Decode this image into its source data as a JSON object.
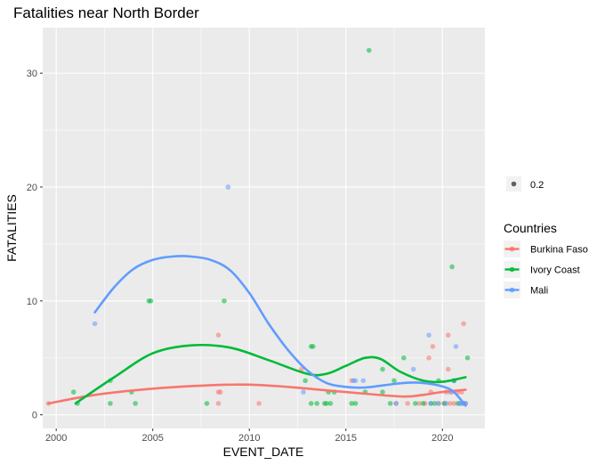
{
  "chart_data": {
    "type": "scatter",
    "title": "Fatalities near North Border",
    "xlabel": "EVENT_DATE",
    "ylabel": "FATALITIES",
    "xlim": [
      1999.3,
      2022.2
    ],
    "ylim": [
      -1.2,
      34.0
    ],
    "x_ticks": [
      2000,
      2005,
      2010,
      2015,
      2020
    ],
    "x_tick_labels": [
      "2000",
      "2005",
      "2010",
      "2015",
      "2020"
    ],
    "y_ticks": [
      0,
      10,
      20,
      30
    ],
    "y_tick_labels": [
      "0",
      "10",
      "20",
      "30"
    ],
    "grid": true,
    "size_legend": {
      "label": "0.2"
    },
    "legend_title": "Countries",
    "legend_position": "right",
    "series": [
      {
        "name": "Burkina Faso",
        "color": "#F8766D",
        "points": [
          [
            1999.6,
            1
          ],
          [
            2008.4,
            7
          ],
          [
            2008.4,
            2
          ],
          [
            2008.5,
            2
          ],
          [
            2008.4,
            1
          ],
          [
            2010.5,
            1
          ],
          [
            2012.7,
            4
          ],
          [
            2015.3,
            3
          ],
          [
            2017.6,
            1
          ],
          [
            2018.2,
            1
          ],
          [
            2018.8,
            1
          ],
          [
            2019.1,
            1
          ],
          [
            2019.3,
            5
          ],
          [
            2019.4,
            2
          ],
          [
            2019.5,
            6
          ],
          [
            2019.8,
            1
          ],
          [
            2020.1,
            1
          ],
          [
            2020.2,
            2
          ],
          [
            2020.3,
            4
          ],
          [
            2020.3,
            7
          ],
          [
            2020.4,
            1
          ],
          [
            2020.5,
            2
          ],
          [
            2020.6,
            1
          ],
          [
            2020.8,
            2
          ],
          [
            2020.9,
            1
          ],
          [
            2021.0,
            2
          ],
          [
            2021.1,
            8
          ],
          [
            2021.2,
            1
          ]
        ],
        "smooth": [
          [
            1999.6,
            1.0
          ],
          [
            2002,
            1.75
          ],
          [
            2005,
            2.3
          ],
          [
            2008,
            2.6
          ],
          [
            2010,
            2.65
          ],
          [
            2012,
            2.45
          ],
          [
            2014,
            2.15
          ],
          [
            2016,
            1.85
          ],
          [
            2018,
            1.6
          ],
          [
            2019,
            1.75
          ],
          [
            2020,
            2.0
          ],
          [
            2021.2,
            2.2
          ]
        ]
      },
      {
        "name": "Ivory Coast",
        "color": "#00BA38",
        "points": [
          [
            2000.9,
            2
          ],
          [
            2001.1,
            1
          ],
          [
            2002.8,
            3
          ],
          [
            2002.8,
            1
          ],
          [
            2003.9,
            2
          ],
          [
            2004.1,
            1
          ],
          [
            2004.8,
            10
          ],
          [
            2004.9,
            10
          ],
          [
            2007.8,
            1
          ],
          [
            2008.7,
            10
          ],
          [
            2012.9,
            3
          ],
          [
            2013.2,
            6
          ],
          [
            2013.3,
            6
          ],
          [
            2013.2,
            1
          ],
          [
            2013.5,
            1
          ],
          [
            2013.9,
            1
          ],
          [
            2014.0,
            1
          ],
          [
            2014.1,
            2
          ],
          [
            2014.2,
            1
          ],
          [
            2014.4,
            2
          ],
          [
            2015.3,
            1
          ],
          [
            2015.5,
            1
          ],
          [
            2016.0,
            2
          ],
          [
            2016.2,
            32
          ],
          [
            2016.9,
            4
          ],
          [
            2016.9,
            2
          ],
          [
            2017.3,
            1
          ],
          [
            2017.5,
            3
          ],
          [
            2018.0,
            5
          ],
          [
            2018.6,
            1
          ],
          [
            2019.0,
            1
          ],
          [
            2019.4,
            1
          ],
          [
            2019.6,
            1
          ],
          [
            2019.8,
            3
          ],
          [
            2020.1,
            1
          ],
          [
            2020.5,
            13
          ],
          [
            2020.6,
            3
          ],
          [
            2020.6,
            3
          ],
          [
            2020.8,
            1
          ],
          [
            2021.1,
            1
          ],
          [
            2021.3,
            5
          ]
        ],
        "smooth": [
          [
            2001.0,
            1.0
          ],
          [
            2003,
            3.3
          ],
          [
            2005,
            5.4
          ],
          [
            2007,
            6.1
          ],
          [
            2009,
            5.9
          ],
          [
            2011,
            4.8
          ],
          [
            2013,
            3.6
          ],
          [
            2014,
            3.6
          ],
          [
            2015,
            4.3
          ],
          [
            2016,
            5.0
          ],
          [
            2016.8,
            4.9
          ],
          [
            2017.8,
            3.8
          ],
          [
            2019,
            3.0
          ],
          [
            2020,
            2.9
          ],
          [
            2021.2,
            3.3
          ]
        ]
      },
      {
        "name": "Mali",
        "color": "#619CFF",
        "points": [
          [
            2002.0,
            8
          ],
          [
            2008.9,
            20
          ],
          [
            2012.8,
            2
          ],
          [
            2015.4,
            3
          ],
          [
            2015.5,
            3
          ],
          [
            2015.9,
            3
          ],
          [
            2017.6,
            1
          ],
          [
            2018.5,
            4
          ],
          [
            2019.3,
            7
          ],
          [
            2019.4,
            1
          ],
          [
            2019.8,
            1
          ],
          [
            2020.2,
            1
          ],
          [
            2020.4,
            2
          ],
          [
            2020.6,
            3
          ],
          [
            2020.7,
            6
          ],
          [
            2020.9,
            1
          ],
          [
            2021.0,
            1
          ],
          [
            2021.1,
            1
          ],
          [
            2021.2,
            1
          ]
        ],
        "smooth": [
          [
            2002.0,
            9.0
          ],
          [
            2003,
            11.2
          ],
          [
            2004,
            12.8
          ],
          [
            2005,
            13.6
          ],
          [
            2006,
            13.9
          ],
          [
            2007,
            13.9
          ],
          [
            2008,
            13.6
          ],
          [
            2009,
            12.7
          ],
          [
            2010,
            10.7
          ],
          [
            2011,
            8.0
          ],
          [
            2012,
            5.7
          ],
          [
            2013,
            3.9
          ],
          [
            2014,
            2.8
          ],
          [
            2015,
            2.45
          ],
          [
            2016,
            2.4
          ],
          [
            2017,
            2.6
          ],
          [
            2018,
            2.8
          ],
          [
            2019,
            2.8
          ],
          [
            2020,
            2.5
          ],
          [
            2020.6,
            2.0
          ],
          [
            2021.2,
            0.8
          ]
        ]
      }
    ]
  }
}
